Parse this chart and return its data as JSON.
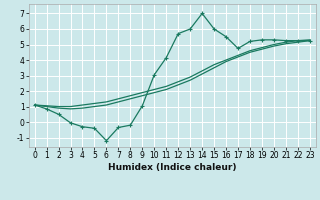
{
  "title": "",
  "xlabel": "Humidex (Indice chaleur)",
  "background_color": "#cce8ea",
  "grid_color": "#ffffff",
  "line_color": "#1a7a60",
  "xlim": [
    -0.5,
    23.5
  ],
  "ylim": [
    -1.6,
    7.6
  ],
  "xticks": [
    0,
    1,
    2,
    3,
    4,
    5,
    6,
    7,
    8,
    9,
    10,
    11,
    12,
    13,
    14,
    15,
    16,
    17,
    18,
    19,
    20,
    21,
    22,
    23
  ],
  "yticks": [
    -1,
    0,
    1,
    2,
    3,
    4,
    5,
    6,
    7
  ],
  "line1_x": [
    0,
    1,
    2,
    3,
    4,
    5,
    6,
    7,
    8,
    9,
    10,
    11,
    12,
    13,
    14,
    15,
    16,
    17,
    18,
    19,
    20,
    21,
    22,
    23
  ],
  "line1_y": [
    1.1,
    0.85,
    0.5,
    -0.05,
    -0.3,
    -0.4,
    -1.2,
    -0.35,
    -0.2,
    1.05,
    3.05,
    4.15,
    5.7,
    6.0,
    7.0,
    6.0,
    5.5,
    4.75,
    5.2,
    5.3,
    5.3,
    5.25,
    5.25,
    5.25
  ],
  "line2_x": [
    0,
    1,
    2,
    3,
    4,
    5,
    6,
    7,
    8,
    9,
    10,
    11,
    12,
    13,
    14,
    15,
    16,
    17,
    18,
    19,
    20,
    21,
    22,
    23
  ],
  "line2_y": [
    1.1,
    1.05,
    1.0,
    1.0,
    1.1,
    1.2,
    1.3,
    1.5,
    1.7,
    1.9,
    2.1,
    2.3,
    2.6,
    2.9,
    3.3,
    3.7,
    4.0,
    4.3,
    4.6,
    4.8,
    5.0,
    5.15,
    5.25,
    5.3
  ],
  "line3_x": [
    0,
    1,
    2,
    3,
    4,
    5,
    6,
    7,
    8,
    9,
    10,
    11,
    12,
    13,
    14,
    15,
    16,
    17,
    18,
    19,
    20,
    21,
    22,
    23
  ],
  "line3_y": [
    1.1,
    1.0,
    0.9,
    0.85,
    0.9,
    1.0,
    1.1,
    1.3,
    1.5,
    1.7,
    1.9,
    2.1,
    2.4,
    2.7,
    3.1,
    3.5,
    3.9,
    4.2,
    4.5,
    4.7,
    4.9,
    5.05,
    5.15,
    5.25
  ],
  "tick_fontsize": 5.5,
  "xlabel_fontsize": 6.5
}
